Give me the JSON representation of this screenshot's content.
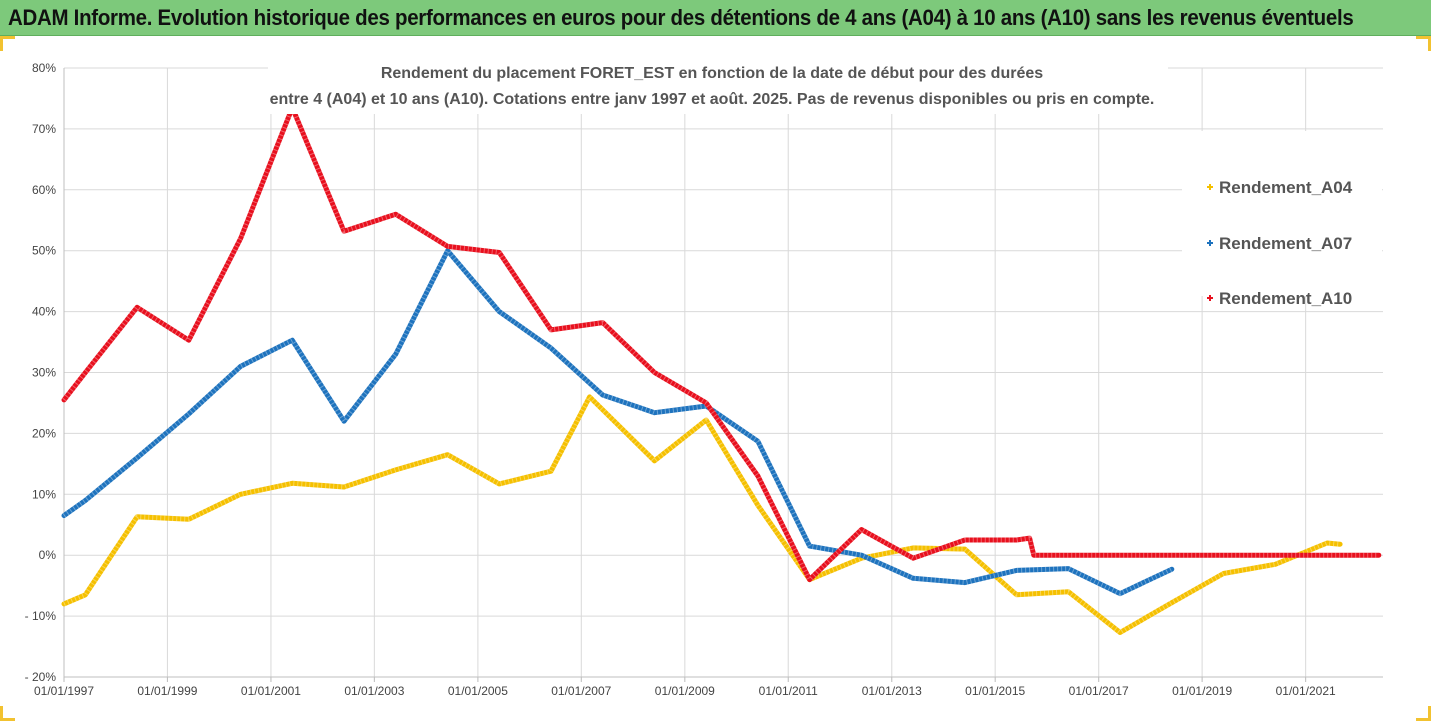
{
  "banner": {
    "title": "ADAM Informe. Evolution historique des performances en euros pour des détentions de 4 ans (A04) à 10 ans (A10) sans les revenus éventuels"
  },
  "colors": {
    "banner": "#7dc97b",
    "A04": "#f5c000",
    "A07": "#1e73be",
    "A10": "#e8101e",
    "grid": "#d9d9d9"
  },
  "chart_data": {
    "type": "line",
    "title": "Rendement du placement FORET_EST en fonction de la date de début pour des durées",
    "subtitle": "entre 4 (A04) et 10 ans (A10). Cotations entre janv 1997 et août. 2025. Pas de revenus disponibles ou pris en compte.",
    "xlabel": "",
    "ylabel": "",
    "x_range": [
      "01/01/1997",
      "01/07/2022"
    ],
    "x_ticks": [
      "01/01/1997",
      "01/01/1999",
      "01/01/2001",
      "01/01/2003",
      "01/01/2005",
      "01/01/2007",
      "01/01/2009",
      "01/01/2011",
      "01/01/2013",
      "01/01/2015",
      "01/01/2017",
      "01/01/2019",
      "01/01/2021"
    ],
    "ylim": [
      -0.2,
      0.8
    ],
    "y_ticks": [
      -0.2,
      -0.1,
      0,
      0.1,
      0.2,
      0.3,
      0.4,
      0.5,
      0.6,
      0.7,
      0.8
    ],
    "y_tick_labels": [
      "- 20%",
      "- 10%",
      "0%",
      "10%",
      "20%",
      "30%",
      "40%",
      "50%",
      "60%",
      "70%",
      "80%"
    ],
    "grid": "horizontal",
    "legend_position": "right",
    "series": [
      {
        "name": "Rendement_A04",
        "color": "#f5c000",
        "points": [
          [
            "1997-01-01",
            -0.08
          ],
          [
            "1997-06-01",
            -0.065
          ],
          [
            "1998-06-01",
            0.063
          ],
          [
            "1999-06-01",
            0.059
          ],
          [
            "2000-06-01",
            0.1
          ],
          [
            "2001-06-01",
            0.118
          ],
          [
            "2002-06-01",
            0.112
          ],
          [
            "2003-06-01",
            0.14
          ],
          [
            "2004-06-01",
            0.165
          ],
          [
            "2005-06-01",
            0.117
          ],
          [
            "2006-06-01",
            0.138
          ],
          [
            "2007-03-01",
            0.26
          ],
          [
            "2008-06-01",
            0.155
          ],
          [
            "2009-06-01",
            0.222
          ],
          [
            "2010-06-01",
            0.082
          ],
          [
            "2011-06-01",
            -0.04
          ],
          [
            "2012-06-01",
            -0.005
          ],
          [
            "2013-06-01",
            0.012
          ],
          [
            "2014-06-01",
            0.01
          ],
          [
            "2015-06-01",
            -0.065
          ],
          [
            "2016-06-01",
            -0.06
          ],
          [
            "2017-06-01",
            -0.127
          ],
          [
            "2018-06-01",
            -0.078
          ],
          [
            "2019-06-01",
            -0.03
          ],
          [
            "2020-06-01",
            -0.015
          ],
          [
            "2021-06-01",
            0.02
          ],
          [
            "2021-09-01",
            0.018
          ]
        ]
      },
      {
        "name": "Rendement_A07",
        "color": "#1e73be",
        "points": [
          [
            "1997-01-01",
            0.065
          ],
          [
            "1997-06-01",
            0.09
          ],
          [
            "1998-06-01",
            0.16
          ],
          [
            "1999-06-01",
            0.232
          ],
          [
            "2000-06-01",
            0.31
          ],
          [
            "2001-06-01",
            0.353
          ],
          [
            "2002-06-01",
            0.22
          ],
          [
            "2003-06-01",
            0.33
          ],
          [
            "2004-06-01",
            0.5
          ],
          [
            "2005-06-01",
            0.4
          ],
          [
            "2006-06-01",
            0.34
          ],
          [
            "2007-06-01",
            0.263
          ],
          [
            "2008-06-01",
            0.234
          ],
          [
            "2009-06-01",
            0.245
          ],
          [
            "2010-06-01",
            0.187
          ],
          [
            "2011-06-01",
            0.015
          ],
          [
            "2012-06-01",
            0.0
          ],
          [
            "2013-06-01",
            -0.038
          ],
          [
            "2014-06-01",
            -0.045
          ],
          [
            "2015-06-01",
            -0.025
          ],
          [
            "2016-06-01",
            -0.022
          ],
          [
            "2017-06-01",
            -0.063
          ],
          [
            "2018-06-01",
            -0.023
          ]
        ]
      },
      {
        "name": "Rendement_A10",
        "color": "#e8101e",
        "points": [
          [
            "1997-01-01",
            0.255
          ],
          [
            "1997-06-01",
            0.3
          ],
          [
            "1998-06-01",
            0.407
          ],
          [
            "1999-06-01",
            0.353
          ],
          [
            "2000-06-01",
            0.52
          ],
          [
            "2001-06-01",
            0.735
          ],
          [
            "2002-06-01",
            0.532
          ],
          [
            "2003-06-01",
            0.56
          ],
          [
            "2004-06-01",
            0.507
          ],
          [
            "2005-06-01",
            0.497
          ],
          [
            "2006-06-01",
            0.37
          ],
          [
            "2007-06-01",
            0.382
          ],
          [
            "2008-06-01",
            0.3
          ],
          [
            "2009-06-01",
            0.25
          ],
          [
            "2010-06-01",
            0.13
          ],
          [
            "2011-06-01",
            -0.04
          ],
          [
            "2012-06-01",
            0.042
          ],
          [
            "2013-06-01",
            -0.005
          ],
          [
            "2014-06-01",
            0.025
          ],
          [
            "2015-06-01",
            0.025
          ],
          [
            "2015-09-01",
            0.028
          ],
          [
            "2015-10-01",
            0.0
          ],
          [
            "2022-06-01",
            0.0
          ]
        ]
      }
    ]
  }
}
